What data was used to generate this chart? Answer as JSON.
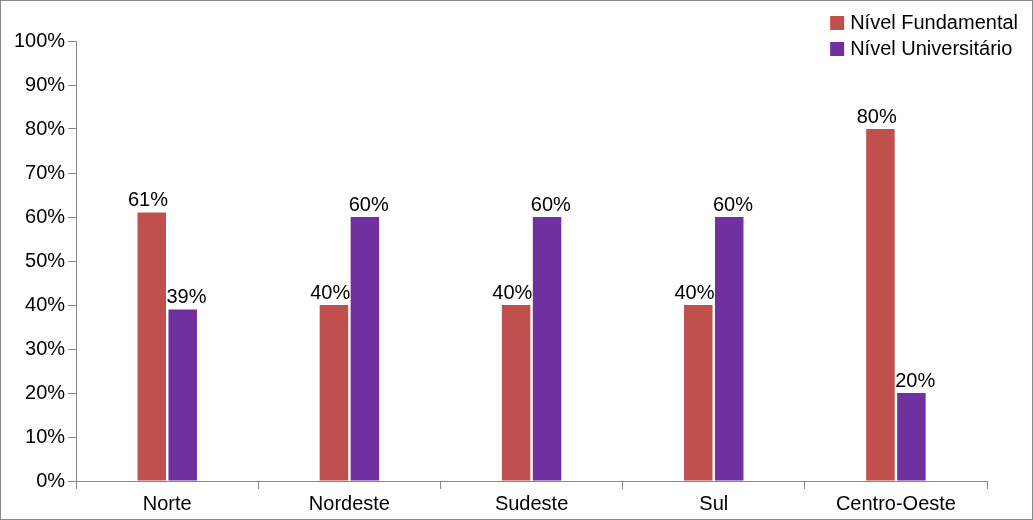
{
  "chart_data": {
    "type": "bar",
    "categories": [
      "Norte",
      "Nordeste",
      "Sudeste",
      "Sul",
      "Centro-Oeste"
    ],
    "series": [
      {
        "name": "Nível Fundamental",
        "color": "#c0504d",
        "values": [
          61,
          40,
          40,
          40,
          80
        ],
        "value_labels": [
          "61%",
          "40%",
          "40%",
          "40%",
          "80%"
        ]
      },
      {
        "name": "Nível Universitário",
        "color": "#7030a0",
        "values": [
          39,
          60,
          60,
          60,
          20
        ],
        "value_labels": [
          "39%",
          "60%",
          "60%",
          "60%",
          "20%"
        ]
      }
    ],
    "ylim": [
      0,
      100
    ],
    "yticks": [
      {
        "value": 0,
        "label": "0%"
      },
      {
        "value": 10,
        "label": "10%"
      },
      {
        "value": 20,
        "label": "20%"
      },
      {
        "value": 30,
        "label": "30%"
      },
      {
        "value": 40,
        "label": "40%"
      },
      {
        "value": 50,
        "label": "50%"
      },
      {
        "value": 60,
        "label": "60%"
      },
      {
        "value": 70,
        "label": "70%"
      },
      {
        "value": 80,
        "label": "80%"
      },
      {
        "value": 90,
        "label": "90%"
      },
      {
        "value": 100,
        "label": "100%"
      }
    ],
    "grid": false,
    "legend": "top right"
  }
}
